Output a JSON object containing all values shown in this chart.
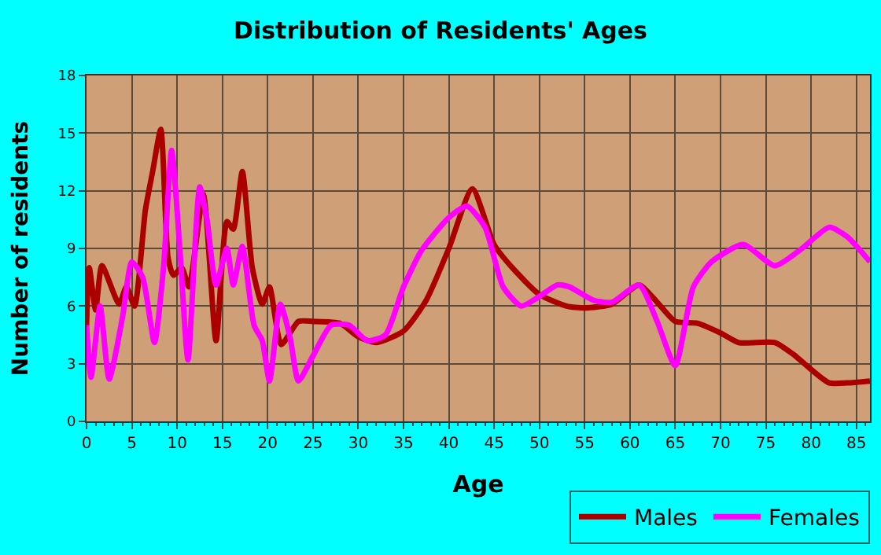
{
  "chart_data": {
    "type": "line",
    "title": "Distribution of Residents' Ages",
    "xlabel": "Age",
    "ylabel": "Number of residents",
    "xlim": [
      0,
      86.5
    ],
    "xticks": [
      0,
      5,
      10,
      15,
      20,
      25,
      30,
      35,
      40,
      45,
      50,
      55,
      60,
      65,
      70,
      75,
      80,
      85
    ],
    "ylim": [
      0,
      18
    ],
    "yticks": [
      0,
      3,
      6,
      9,
      12,
      15,
      18
    ],
    "grid": true,
    "legend": "bottom right",
    "series": [
      {
        "name": "Males",
        "color": "#aa0000",
        "x": [
          0,
          0.3,
          1,
          1.7,
          3.6,
          4.4,
          5.3,
          6.5,
          7.3,
          8.2,
          9,
          9.6,
          10.5,
          11.3,
          12.9,
          14.3,
          15.5,
          16.2,
          17.2,
          18.3,
          19.4,
          20.2,
          21.5,
          23.4,
          25,
          28,
          30,
          32,
          35,
          37.5,
          40,
          42.6,
          45,
          47,
          50,
          53,
          55,
          58,
          61,
          63,
          65,
          67.5,
          70,
          72,
          76,
          78,
          80,
          82,
          84,
          86.5
        ],
        "values": [
          5,
          8,
          5.8,
          8.1,
          6.1,
          7,
          6,
          11,
          13,
          15.2,
          8.5,
          7.6,
          8,
          7,
          11.8,
          4.2,
          10.4,
          10,
          13,
          8,
          6.1,
          7,
          4,
          5.2,
          5.2,
          5.1,
          4.4,
          4.1,
          4.7,
          6.3,
          9,
          12.1,
          9.2,
          8,
          6.6,
          6,
          5.9,
          6.1,
          7.1,
          6.2,
          5.2,
          5.1,
          4.6,
          4.1,
          4.1,
          3.5,
          2.7,
          2,
          2,
          2.1
        ]
      },
      {
        "name": "Females",
        "color": "#ff00ff",
        "x": [
          0,
          0.5,
          1.5,
          2.5,
          4,
          5,
          6.2,
          7.5,
          8.5,
          9.4,
          10.3,
          11.2,
          12.5,
          13.3,
          14.3,
          15.5,
          16.2,
          17.2,
          18.5,
          19.4,
          20.2,
          21.4,
          22.5,
          23.4,
          25,
          27,
          29,
          31,
          33,
          35,
          37,
          40,
          42,
          44,
          46,
          48,
          50,
          52,
          53.3,
          56,
          58,
          61,
          63,
          65,
          67,
          69,
          72.5,
          76,
          79,
          82,
          84,
          86.5
        ],
        "values": [
          5,
          2.3,
          6,
          2.2,
          5.5,
          8.3,
          7.5,
          4.1,
          8,
          14.1,
          9,
          3.2,
          12.2,
          10.5,
          7.1,
          9,
          7.1,
          9.1,
          5,
          4.2,
          2.1,
          6.1,
          4.3,
          2.1,
          3.4,
          5,
          5,
          4.2,
          4.5,
          7,
          8.9,
          10.6,
          11.2,
          10.1,
          7,
          6,
          6.5,
          7.1,
          7,
          6.3,
          6.2,
          7.1,
          5.2,
          2.9,
          7,
          8.3,
          9.2,
          8.1,
          9,
          10.1,
          9.6,
          8.3
        ]
      }
    ]
  }
}
